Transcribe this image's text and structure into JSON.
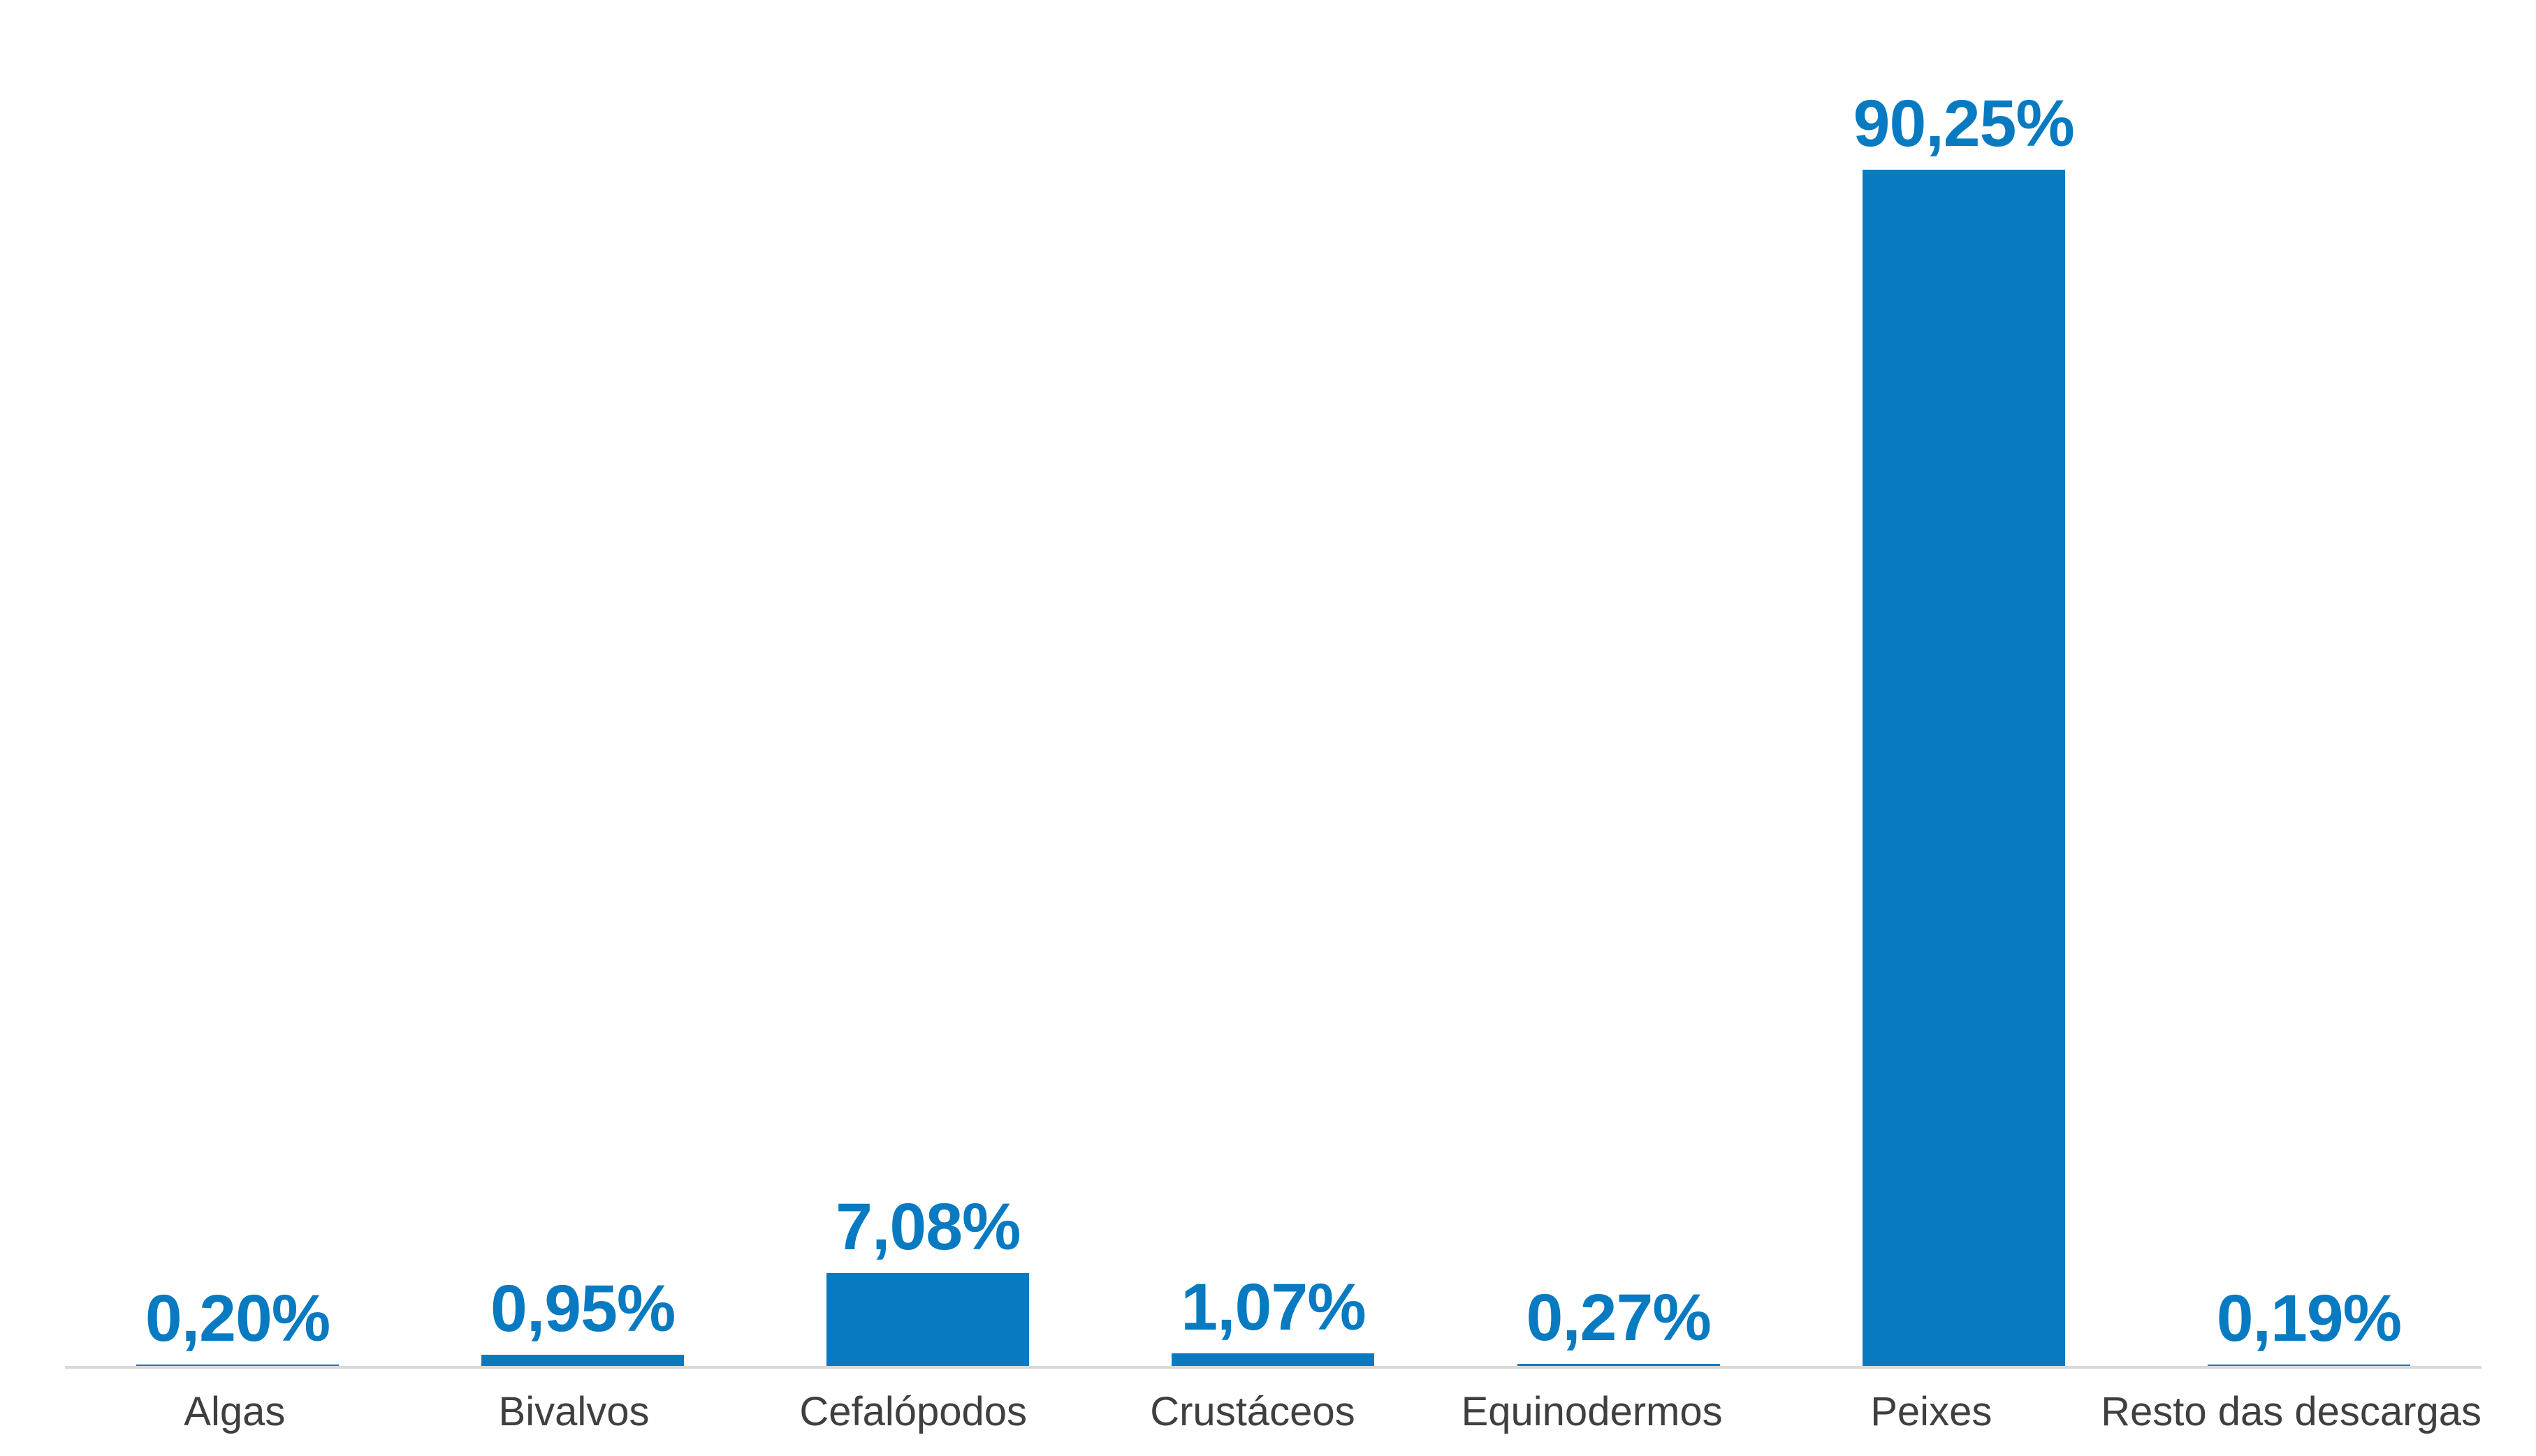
{
  "chart_data": {
    "type": "bar",
    "title": "",
    "xlabel": "",
    "ylabel": "",
    "categories": [
      "Algas",
      "Bivalvos",
      "Cefalópodos",
      "Crustáceos",
      "Equinodermos",
      "Peixes",
      "Resto das descargas"
    ],
    "values": [
      0.2,
      0.95,
      7.08,
      1.07,
      0.27,
      90.25,
      0.19
    ],
    "value_labels": [
      "0,20%",
      "0,95%",
      "7,08%",
      "1,07%",
      "0,27%",
      "90,25%",
      "0,19%"
    ],
    "unit": "%",
    "decimal_separator": ",",
    "ylim": [
      0,
      100
    ],
    "grid": false,
    "legend": "none",
    "y_axis_visible": false,
    "colors": {
      "bar": "#087ac1",
      "value_label": "#087ac1",
      "category_label": "#3f3f3f",
      "axis_line": "#d9d9d9",
      "background": "#ffffff"
    }
  }
}
